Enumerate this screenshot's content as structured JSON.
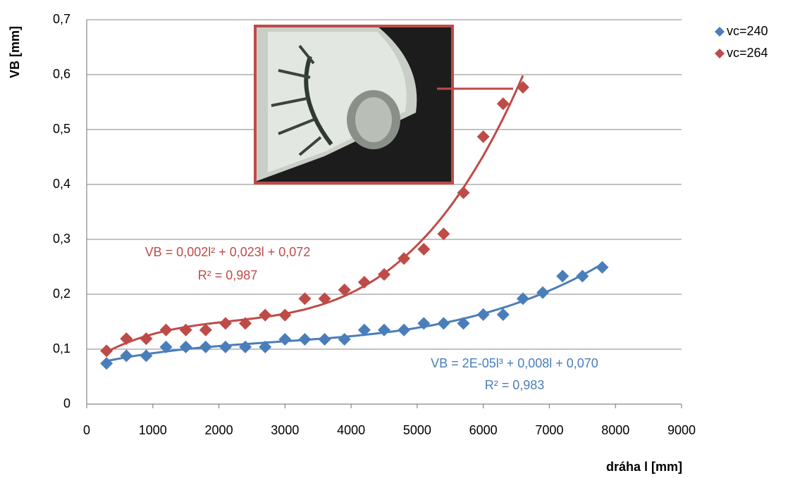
{
  "chart_data": {
    "type": "scatter",
    "x_label": "dráha l [mm]",
    "y_label": "VB [mm]",
    "xlim": [
      0,
      9000
    ],
    "xticks": [
      0,
      1000,
      2000,
      3000,
      4000,
      5000,
      6000,
      7000,
      8000,
      9000
    ],
    "ylim": [
      0,
      0.7
    ],
    "yticks": [
      0,
      {
        "value": 0.1,
        "label": "0,1"
      },
      {
        "value": 0.2,
        "label": "0,2"
      },
      {
        "value": 0.3,
        "label": "0,3"
      },
      {
        "value": 0.4,
        "label": "0,4"
      },
      {
        "value": 0.5,
        "label": "0,5"
      },
      {
        "value": 0.6,
        "label": "0,6"
      },
      {
        "value": 0.7,
        "label": "0,7"
      }
    ],
    "grid": true,
    "legend": "right",
    "series": [
      {
        "name": "vc=240",
        "color": "#4a7ebb",
        "x": [
          300,
          600,
          900,
          1200,
          1500,
          1800,
          2100,
          2400,
          2700,
          3000,
          3300,
          3600,
          3900,
          4200,
          4500,
          4800,
          5100,
          5400,
          5700,
          6000,
          6300,
          6600,
          6900,
          7200,
          7500,
          7800
        ],
        "values": [
          0.074,
          0.088,
          0.088,
          0.104,
          0.104,
          0.104,
          0.104,
          0.104,
          0.104,
          0.118,
          0.118,
          0.118,
          0.118,
          0.135,
          0.135,
          0.135,
          0.147,
          0.147,
          0.147,
          0.163,
          0.163,
          0.192,
          0.203,
          0.233,
          0.233,
          0.249
        ],
        "trendline_equation": "VB = 2E-05l³ + 0,008l + 0,070",
        "trendline_r2": "R² = 0,983"
      },
      {
        "name": "vc=264",
        "color": "#be4b48",
        "x": [
          300,
          600,
          900,
          1200,
          1500,
          1800,
          2100,
          2400,
          2700,
          3000,
          3300,
          3600,
          3900,
          4200,
          4500,
          4800,
          5100,
          5400,
          5700,
          6000,
          6300,
          6600
        ],
        "values": [
          0.097,
          0.119,
          0.119,
          0.135,
          0.135,
          0.135,
          0.147,
          0.147,
          0.162,
          0.162,
          0.192,
          0.192,
          0.208,
          0.222,
          0.236,
          0.265,
          0.282,
          0.31,
          0.385,
          0.487,
          0.547,
          0.577
        ],
        "trendline_equation": "VB = 0,002l² + 0,023l + 0,072",
        "trendline_r2": "R² = 0,987"
      }
    ]
  }
}
